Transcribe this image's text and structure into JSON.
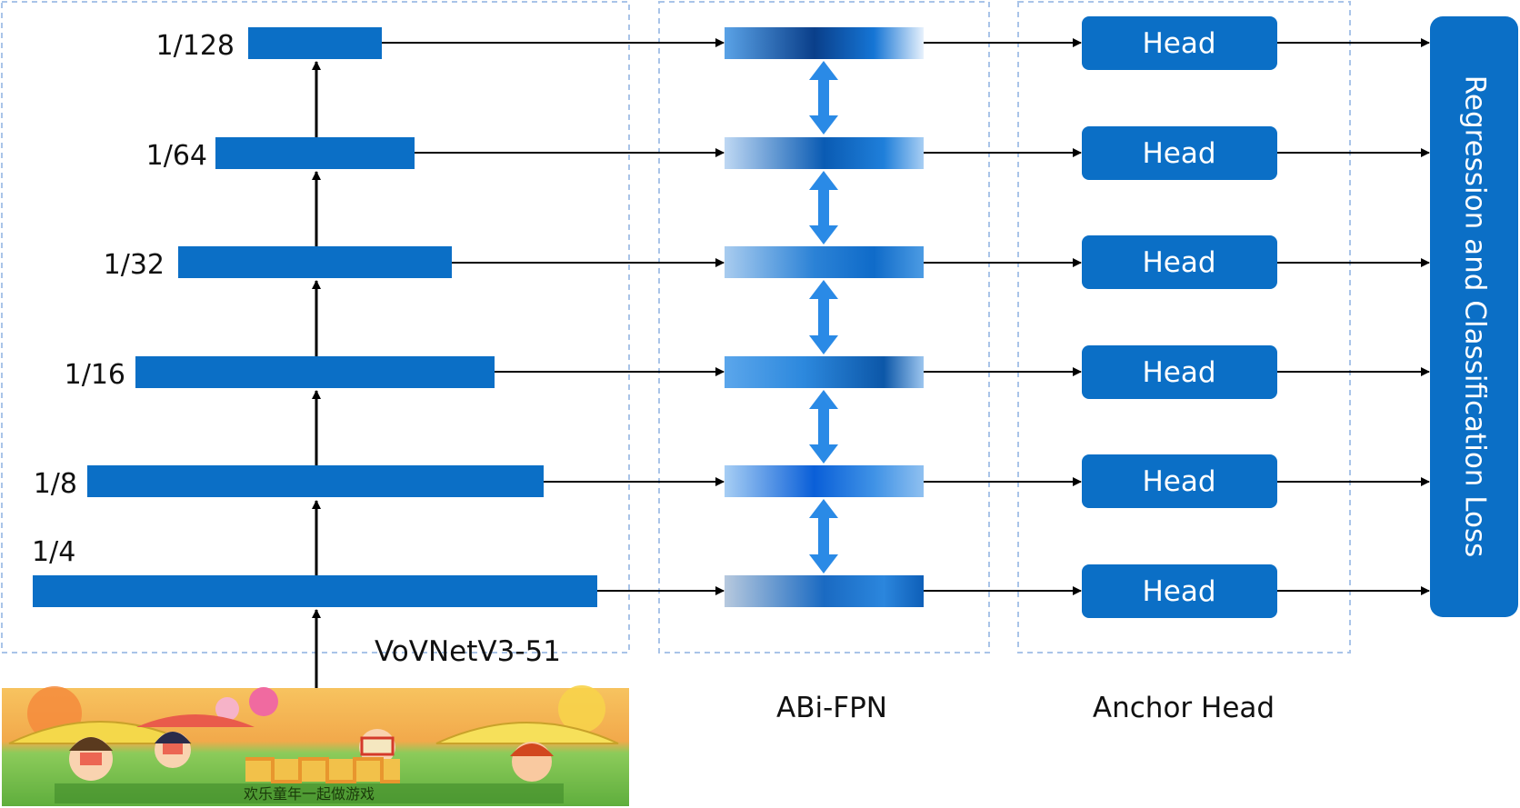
{
  "backbone": {
    "title": "VoVNetV3-51",
    "stages": [
      "1/128",
      "1/64",
      "1/32",
      "1/16",
      "1/8",
      "1/4"
    ]
  },
  "fpn": {
    "title": "ABi-FPN"
  },
  "anchor_head": {
    "title": "Anchor Head",
    "head_label": "Head",
    "head_count": 6
  },
  "loss": {
    "label": "Regression and Classification Loss"
  },
  "colors": {
    "block": "#0B6FC6",
    "head": "#0B6FC6",
    "bidir_arrow": "#2A8AE6",
    "dashed_border": "#A9C4E8",
    "arrow": "#000000",
    "fpn_dark": "#0A5BB3",
    "fpn_light": "#DCEBFA"
  },
  "input_image": {
    "icon": "cartoon-children-image",
    "caption": "欢乐童年一起做游戏"
  }
}
